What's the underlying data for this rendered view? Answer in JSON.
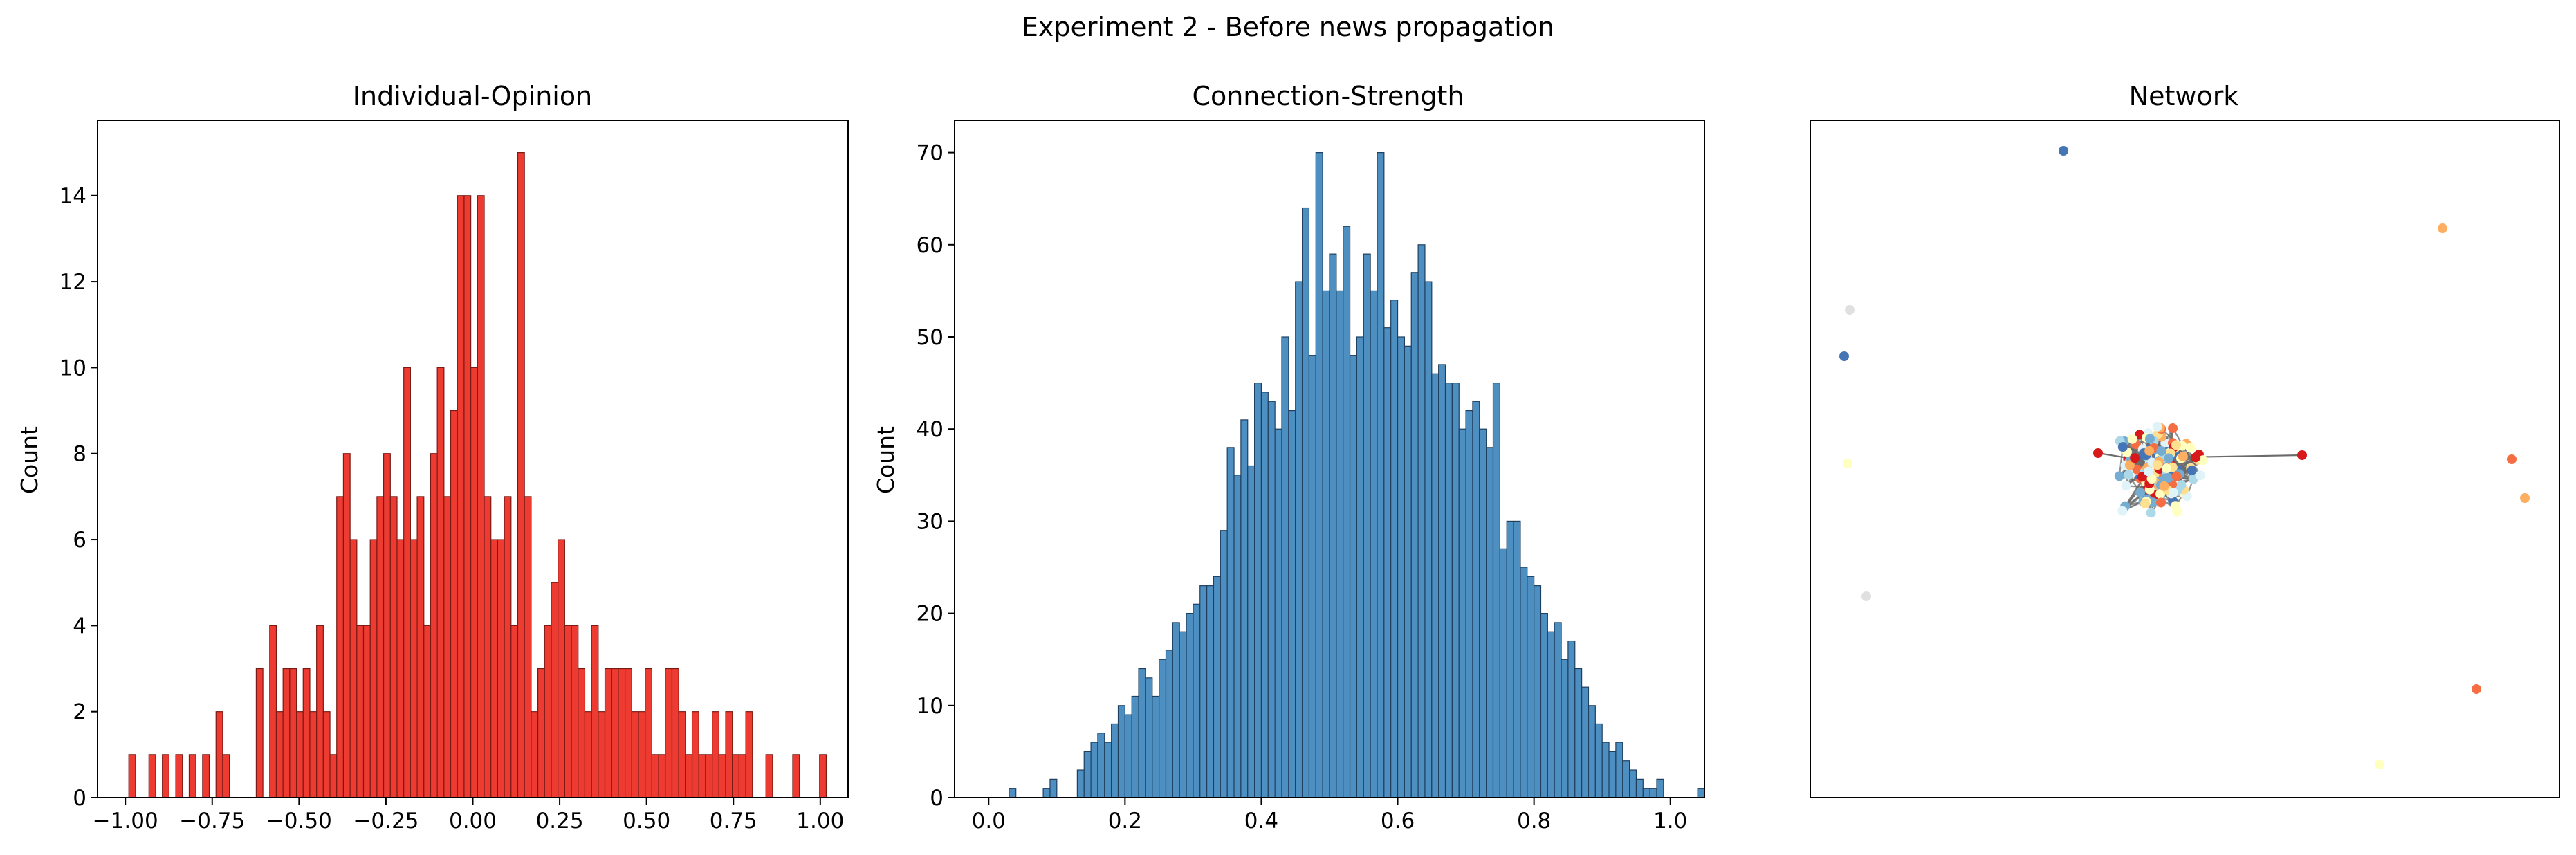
{
  "suptitle": "Experiment 2 - Before news propagation",
  "colors": {
    "opinion_bar": "#ee3b32",
    "opinion_edge": "#7a1a14",
    "strength_bar": "#4e8fc2",
    "strength_edge": "#1f3f5f",
    "network_edge": "#6b6b6b"
  },
  "chart_data": [
    {
      "type": "bar",
      "title": "Individual-Opinion",
      "xlabel": "",
      "ylabel": "Count",
      "xlim": [
        -1.08,
        1.08
      ],
      "ylim": [
        0,
        15.75
      ],
      "xticks": [
        -1.0,
        -0.75,
        -0.5,
        -0.25,
        0.0,
        0.25,
        0.5,
        0.75,
        1.0
      ],
      "xtick_labels": [
        "−1.00",
        "−0.75",
        "−0.50",
        "−0.25",
        "0.00",
        "0.25",
        "0.50",
        "0.75",
        "1.00"
      ],
      "yticks": [
        0,
        2,
        4,
        6,
        8,
        10,
        12,
        14
      ],
      "ytick_labels": [
        "0",
        "2",
        "4",
        "6",
        "8",
        "10",
        "12",
        "14"
      ],
      "bin_start": -0.99,
      "bin_width": 0.0193,
      "values": [
        1,
        0,
        0,
        1,
        0,
        1,
        0,
        1,
        0,
        1,
        0,
        1,
        0,
        2,
        1,
        0,
        0,
        0,
        0,
        3,
        0,
        4,
        2,
        3,
        3,
        2,
        3,
        2,
        4,
        2,
        1,
        7,
        8,
        6,
        4,
        4,
        6,
        7,
        8,
        7,
        6,
        10,
        6,
        7,
        4,
        8,
        10,
        7,
        9,
        14,
        14,
        10,
        14,
        7,
        6,
        6,
        7,
        4,
        15,
        7,
        2,
        3,
        4,
        5,
        6,
        4,
        4,
        3,
        2,
        4,
        2,
        3,
        3,
        3,
        3,
        2,
        2,
        3,
        1,
        1,
        3,
        3,
        2,
        1,
        2,
        1,
        1,
        2,
        1,
        2,
        1,
        1,
        2,
        0,
        0,
        1,
        0,
        0,
        0,
        1,
        0,
        0,
        0,
        1
      ],
      "grid": false
    },
    {
      "type": "bar",
      "title": "Connection-Strength",
      "xlabel": "",
      "ylabel": "Count",
      "xlim": [
        -0.05,
        1.05
      ],
      "ylim": [
        0,
        73.5
      ],
      "xticks": [
        0.0,
        0.2,
        0.4,
        0.6,
        0.8,
        1.0
      ],
      "xtick_labels": [
        "0.0",
        "0.2",
        "0.4",
        "0.6",
        "0.8",
        "1.0"
      ],
      "yticks": [
        0,
        10,
        20,
        30,
        40,
        50,
        60,
        70
      ],
      "ytick_labels": [
        "0",
        "10",
        "20",
        "30",
        "40",
        "50",
        "60",
        "70"
      ],
      "bin_start": 0.0,
      "bin_width": 0.01,
      "values": [
        0,
        0,
        0,
        1,
        0,
        0,
        0,
        0,
        1,
        2,
        0,
        0,
        0,
        3,
        5,
        6,
        7,
        6,
        8,
        10,
        9,
        11,
        14,
        13,
        11,
        15,
        16,
        19,
        18,
        20,
        21,
        23,
        23,
        24,
        29,
        38,
        35,
        41,
        36,
        45,
        44,
        43,
        40,
        50,
        42,
        56,
        64,
        48,
        70,
        55,
        59,
        55,
        62,
        48,
        50,
        59,
        55,
        70,
        51,
        54,
        50,
        49,
        57,
        60,
        56,
        46,
        47,
        45,
        45,
        40,
        42,
        43,
        40,
        38,
        45,
        27,
        30,
        30,
        25,
        24,
        23,
        20,
        18,
        19,
        15,
        17,
        14,
        12,
        10,
        8,
        6,
        5,
        6,
        4,
        3,
        2,
        1,
        1,
        2,
        0,
        0,
        0,
        0,
        0,
        1
      ],
      "grid": false
    },
    {
      "type": "scatter",
      "title": "Network",
      "xlabel": "",
      "ylabel": "",
      "grid": false
    }
  ]
}
